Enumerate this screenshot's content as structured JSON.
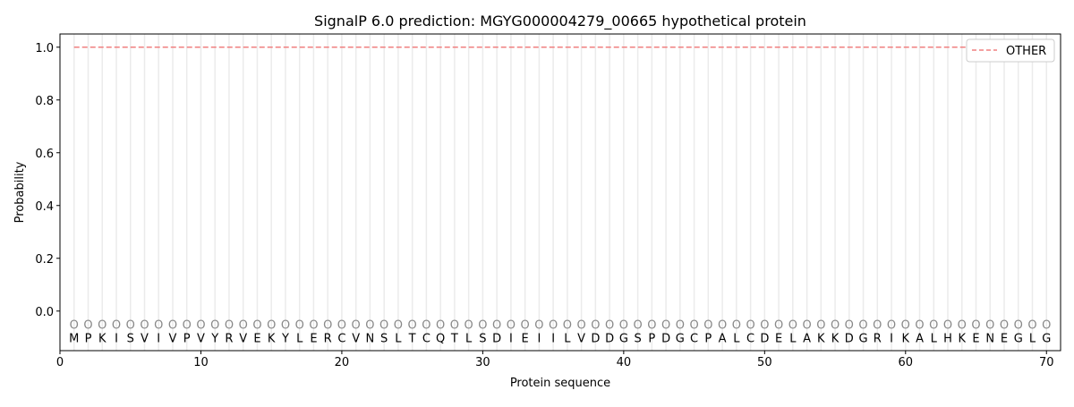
{
  "chart_data": {
    "type": "line",
    "title": "SignalP 6.0 prediction: MGYG000004279_00665 hypothetical protein",
    "xlabel": "Protein sequence",
    "ylabel": "Probability",
    "xlim": [
      0,
      71
    ],
    "ylim": [
      -0.15,
      1.05
    ],
    "xticks": [
      0,
      10,
      20,
      30,
      40,
      50,
      60,
      70
    ],
    "yticks": [
      0.0,
      0.2,
      0.4,
      0.6,
      0.8,
      1.0
    ],
    "ytick_labels": [
      "0.0",
      "0.2",
      "0.4",
      "0.6",
      "0.8",
      "1.0"
    ],
    "sequence": [
      "M",
      "P",
      "K",
      "I",
      "S",
      "V",
      "I",
      "V",
      "P",
      "V",
      "Y",
      "R",
      "V",
      "E",
      "K",
      "Y",
      "L",
      "E",
      "R",
      "C",
      "V",
      "N",
      "S",
      "L",
      "T",
      "C",
      "Q",
      "T",
      "L",
      "S",
      "D",
      "I",
      "E",
      "I",
      "I",
      "L",
      "V",
      "D",
      "D",
      "G",
      "S",
      "P",
      "D",
      "G",
      "C",
      "P",
      "A",
      "L",
      "C",
      "D",
      "E",
      "L",
      "A",
      "K",
      "K",
      "D",
      "G",
      "R",
      "I",
      "K",
      "A",
      "L",
      "H",
      "K",
      "E",
      "N",
      "E",
      "G",
      "L",
      "G"
    ],
    "predicted_label": "O",
    "series": [
      {
        "name": "OTHER",
        "color": "#f08080",
        "style": "dashed",
        "x_start": 1,
        "x_end": 70,
        "value": 1.0
      }
    ],
    "legend_position": "top-right",
    "grid": "vertical lines at each residue"
  }
}
